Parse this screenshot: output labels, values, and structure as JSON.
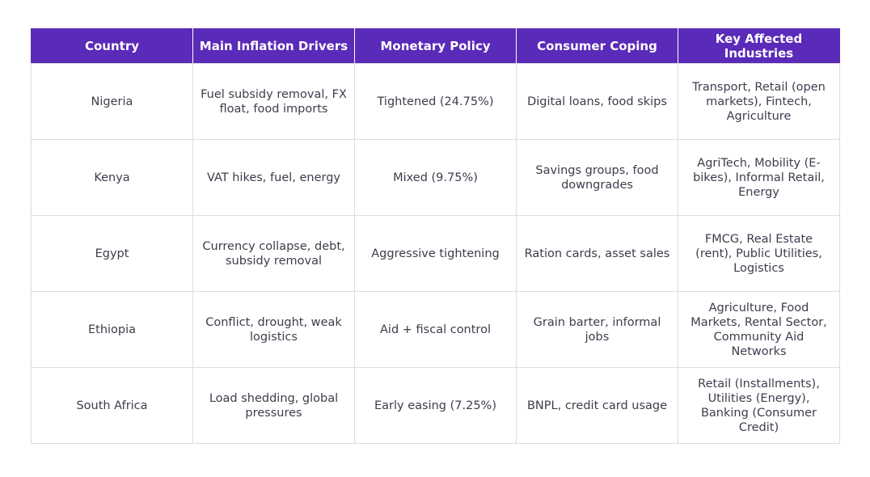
{
  "table": {
    "headers": [
      "Country",
      "Main Inflation Drivers",
      "Monetary Policy",
      "Consumer Coping",
      "Key Affected Industries"
    ],
    "rows": [
      [
        "Nigeria",
        "Fuel subsidy removal, FX float, food imports",
        "Tightened (24.75%)",
        "Digital loans, food skips",
        "Transport, Retail (open markets), Fintech, Agriculture"
      ],
      [
        "Kenya",
        "VAT hikes, fuel, energy",
        "Mixed (9.75%)",
        "Savings groups, food downgrades",
        "AgriTech, Mobility (E-bikes), Informal Retail, Energy"
      ],
      [
        "Egypt",
        "Currency collapse, debt, subsidy removal",
        "Aggressive tightening",
        "Ration cards, asset sales",
        "FMCG, Real Estate (rent), Public Utilities, Logistics"
      ],
      [
        "Ethiopia",
        "Conflict, drought, weak logistics",
        "Aid + fiscal control",
        "Grain barter, informal jobs",
        "Agriculture, Food Markets, Rental Sector, Community Aid Networks"
      ],
      [
        "South Africa",
        "Load shedding, global pressures",
        "Early easing (7.25%)",
        "BNPL, credit card usage",
        "Retail (Installments), Utilities (Energy), Banking (Consumer Credit)"
      ]
    ]
  },
  "colors": {
    "header_bg": "#5a2ab8",
    "header_text": "#ffffff",
    "border": "#dcdcdc"
  }
}
